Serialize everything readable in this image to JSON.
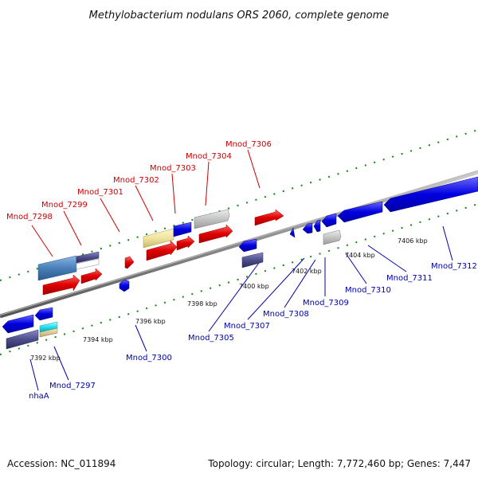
{
  "title": "Methylobacterium nodulans ORS 2060, complete genome",
  "footer": {
    "accession": "Accession: NC_011894",
    "topology": "Topology: circular; Length: 7,772,460 bp; Genes: 7,447"
  },
  "kbp_labels": [
    "7392 kbp",
    "7394 kbp",
    "7396 kbp",
    "7398 kbp",
    "7400 kbp",
    "7402 kbp",
    "7404 kbp",
    "7406 kbp"
  ],
  "top_genes": [
    "Mnod_7298",
    "Mnod_7299",
    "Mnod_7301",
    "Mnod_7302",
    "Mnod_7303",
    "Mnod_7304",
    "Mnod_7306"
  ],
  "bottom_genes": [
    "nhaA",
    "Mnod_7297",
    "Mnod_7300",
    "Mnod_7305",
    "Mnod_7307",
    "Mnod_7308",
    "Mnod_7309",
    "Mnod_7310",
    "Mnod_7311",
    "Mnod_7312"
  ],
  "colors": {
    "forward_strand": "#e00000",
    "reverse_strand": "#0000e0",
    "backbone": "#8a8a8a",
    "tick": "#118811",
    "hypothetical": "#c8c8c8",
    "pale_yellow": "#f0e4a0",
    "steel_blue": "#4a7fb8",
    "slate": "#4d4d8a",
    "cyan": "#22e0ee"
  }
}
